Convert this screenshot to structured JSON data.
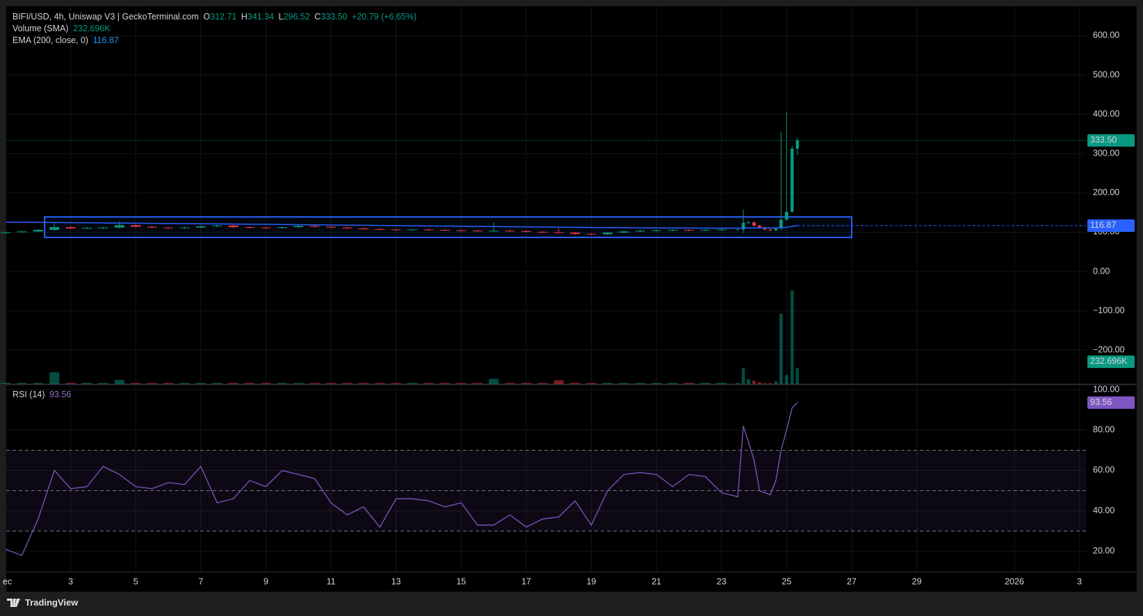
{
  "chart_data": [
    {
      "type": "candlestick",
      "title": "BIFI/USD, 4h, Uniswap V3 | GeckoTerminal.com",
      "ohlc_labels": [
        "O",
        "H",
        "L",
        "C"
      ],
      "ohlc_values": [
        "312.71",
        "341.34",
        "296.52",
        "333.50"
      ],
      "change": "+20.79 (+6.65%)",
      "up_color": "#089981",
      "down_color": "#f23645",
      "x": [
        1,
        1.5,
        2,
        2.5,
        3,
        3.5,
        4,
        4.5,
        5,
        5.5,
        6,
        6.5,
        7,
        7.5,
        8,
        8.5,
        9,
        9.5,
        10,
        10.5,
        11,
        11.5,
        12,
        12.5,
        13,
        13.5,
        14,
        14.5,
        15,
        15.5,
        16,
        16.5,
        17,
        17.5,
        18,
        18.5,
        19,
        19.5,
        20,
        20.5,
        21,
        21.5,
        22,
        22.5,
        23,
        23.5,
        23.67,
        23.83,
        24,
        24.17,
        24.33,
        24.5,
        24.67,
        24.83,
        25,
        25.17,
        25.33
      ],
      "open": [
        98,
        100,
        102,
        106,
        113,
        110,
        111,
        112,
        118,
        114,
        112,
        111,
        112,
        115,
        117,
        113,
        112,
        111,
        113,
        116,
        114,
        112,
        110,
        108,
        107,
        106,
        107,
        106,
        105,
        104,
        103,
        104,
        103,
        101,
        100,
        99,
        96,
        95,
        99,
        102,
        104,
        105,
        106,
        105,
        106,
        107,
        107,
        124,
        125,
        117,
        112,
        107,
        105,
        110,
        132,
        152,
        312.71
      ],
      "high": [
        102,
        104,
        108,
        125,
        115,
        113,
        114,
        128,
        120,
        116,
        114,
        114,
        117,
        119,
        119,
        115,
        114,
        115,
        118,
        118,
        116,
        114,
        112,
        110,
        109,
        109,
        109,
        108,
        107,
        106,
        125,
        106,
        105,
        103,
        110,
        101,
        98,
        101,
        104,
        106,
        107,
        108,
        108,
        108,
        109,
        109,
        158,
        128,
        127,
        119,
        114,
        109,
        112,
        356,
        407,
        320,
        341.34
      ],
      "low": [
        96,
        98,
        100,
        104,
        108,
        108,
        109,
        110,
        112,
        110,
        109,
        109,
        110,
        113,
        111,
        110,
        109,
        109,
        111,
        112,
        110,
        108,
        106,
        105,
        104,
        104,
        104,
        103,
        102,
        101,
        101,
        101,
        99,
        98,
        97,
        94,
        93,
        93,
        97,
        100,
        102,
        103,
        103,
        103,
        104,
        105,
        98,
        122,
        115,
        110,
        105,
        103,
        103,
        105,
        130,
        150,
        296.52
      ],
      "close": [
        100,
        102,
        106,
        113,
        110,
        111,
        112,
        118,
        114,
        112,
        111,
        112,
        115,
        117,
        113,
        112,
        111,
        113,
        116,
        114,
        112,
        110,
        108,
        107,
        106,
        107,
        106,
        105,
        104,
        103,
        104,
        103,
        101,
        100,
        99,
        96,
        95,
        99,
        102,
        104,
        105,
        106,
        105,
        106,
        107,
        107,
        124,
        125,
        117,
        112,
        107,
        105,
        110,
        132,
        152,
        312.71,
        333.5
      ],
      "last_price_label": "333.50",
      "volume": {
        "name": "Volume (SMA)",
        "sma": 232696,
        "value_label": "232.696K",
        "values": [
          15000,
          15000,
          15000,
          170000,
          15000,
          15000,
          15000,
          60000,
          15000,
          15000,
          15000,
          15000,
          15000,
          15000,
          15000,
          15000,
          15000,
          15000,
          15000,
          15000,
          15000,
          15000,
          15000,
          15000,
          15000,
          15000,
          15000,
          15000,
          15000,
          15000,
          75000,
          15000,
          15000,
          15000,
          55000,
          15000,
          15000,
          15000,
          15000,
          15000,
          15000,
          15000,
          15000,
          15000,
          15000,
          15000,
          230000,
          70000,
          50000,
          30000,
          15000,
          15000,
          40000,
          1020000,
          130000,
          1360000,
          230000
        ]
      },
      "ema": {
        "name": "EMA (200, close, 0)",
        "color": "#2962ff",
        "last_label": "116.87",
        "values": [
          126,
          125.6,
          125.2,
          124.9,
          124.5,
          124.2,
          123.8,
          123.4,
          123.1,
          122.7,
          122.3,
          122,
          121.6,
          121.2,
          120.9,
          120.5,
          120.1,
          119.7,
          119.3,
          118.9,
          118.5,
          118.1,
          117.7,
          117.3,
          116.9,
          116.5,
          116.1,
          115.7,
          115.3,
          114.9,
          114.5,
          114.1,
          113.7,
          113.3,
          112.9,
          112.5,
          112.1,
          111.8,
          111.5,
          111.2,
          111,
          110.8,
          110.7,
          110.6,
          110.6,
          110.6,
          110.7,
          110.9,
          111,
          111.1,
          111.1,
          111.1,
          111.2,
          111.6,
          112.4,
          115.0,
          116.87
        ]
      },
      "box": {
        "color": "#2962ff",
        "x": [
          2.2,
          27
        ],
        "y": [
          87,
          139
        ]
      },
      "xlim": [
        1,
        34.2
      ],
      "xticks": [
        {
          "value": 1,
          "label": "ec"
        },
        3,
        5,
        7,
        9,
        11,
        13,
        15,
        17,
        19,
        21,
        23,
        25,
        27,
        29,
        {
          "value": 32,
          "label": "2026"
        },
        {
          "value": 34,
          "label": "3"
        }
      ],
      "ylim": [
        -286,
        673
      ],
      "yticks": [
        {
          "value": -200,
          "label": "−200.00"
        },
        {
          "value": -100,
          "label": "−100.00"
        },
        {
          "value": 0,
          "label": "0.00"
        },
        {
          "value": 100,
          "label": "100.00"
        },
        {
          "value": 200,
          "label": "200.00"
        },
        {
          "value": 300,
          "label": "300.00"
        },
        {
          "value": 400,
          "label": "400.00"
        },
        {
          "value": 500,
          "label": "500.00"
        },
        {
          "value": 600,
          "label": "600.00"
        }
      ],
      "grid": true
    },
    {
      "type": "line",
      "name": "RSI (14)",
      "value_label": "93.56",
      "color": "#7e57c2",
      "values": [
        21,
        18,
        36,
        60,
        51,
        52,
        62,
        58,
        52,
        51,
        54,
        53,
        62,
        44,
        46,
        55,
        52,
        60,
        58,
        56,
        44,
        38,
        42,
        32,
        46,
        46,
        45,
        42,
        44,
        33,
        33,
        38,
        32,
        36,
        37,
        45,
        33,
        50,
        58,
        59,
        58,
        52,
        58,
        57,
        49,
        47,
        82,
        74,
        65,
        50,
        49,
        48,
        55,
        70,
        80,
        91,
        93.56
      ],
      "levels": [
        70,
        50,
        30
      ],
      "band": [
        30,
        70
      ],
      "ylim": [
        10,
        102.4
      ],
      "yticks": [
        {
          "value": 20,
          "label": "20.00"
        },
        {
          "value": 40,
          "label": "40.00"
        },
        {
          "value": 60,
          "label": "60.00"
        },
        {
          "value": 80,
          "label": "80.00"
        },
        {
          "value": 100,
          "label": "100.00"
        }
      ],
      "grid": true
    }
  ],
  "footer": "TradingView"
}
